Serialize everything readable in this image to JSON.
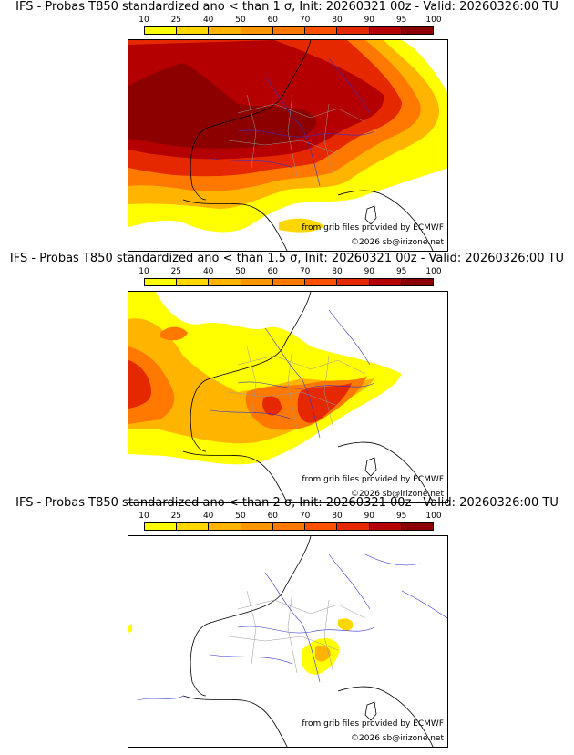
{
  "colorbar": {
    "ticks": [
      "10",
      "25",
      "40",
      "50",
      "60",
      "70",
      "80",
      "90",
      "95",
      "100"
    ],
    "colors": [
      "#ffff00",
      "#ffd700",
      "#ffb400",
      "#ff9600",
      "#ff7800",
      "#ff5000",
      "#e62800",
      "#b40000",
      "#8c0000"
    ]
  },
  "panels": [
    {
      "title": "IFS - Probas T850  standardized ano < than 1 σ, Init: 20260321 00z - Valid: 20260326:00 TU",
      "threshold_sigma": 1,
      "credit": "from grib files provided by ECMWF",
      "copyright": "©2026 sb@irizone.net"
    },
    {
      "title": "IFS - Probas T850  standardized ano < than 1.5 σ, Init: 20260321 00z - Valid: 20260326:00 TU",
      "threshold_sigma": 1.5,
      "credit": "from grib files provided by ECMWF",
      "copyright": "©2026 sb@irizone.net"
    },
    {
      "title": "IFS - Probas T850  standardized ano < than 2 σ, Init: 20260321 00z - Valid: 20260326:00 TU",
      "threshold_sigma": 2,
      "credit": "from grib files provided by ECMWF",
      "copyright": "©2026 sb@irizone.net"
    }
  ],
  "colors": {
    "coast": "#000000",
    "rivers": "#3333cc",
    "borders": "#999999"
  }
}
